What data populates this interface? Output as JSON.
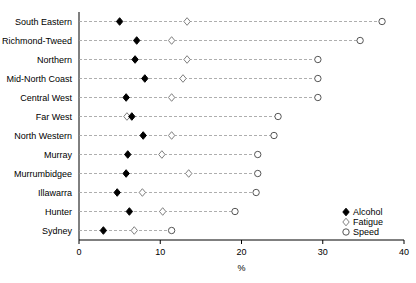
{
  "chart_data": {
    "type": "dot",
    "orientation": "horizontal",
    "xlabel": "%",
    "categories": [
      "South Eastern",
      "Richmond-Tweed",
      "Northern",
      "Mid-North Coast",
      "Central West",
      "Far West",
      "North Western",
      "Murray",
      "Murrumbidgee",
      "Illawarra",
      "Hunter",
      "Sydney"
    ],
    "series": [
      {
        "name": "Alcohol",
        "color": "#000000",
        "marker": "diamond-filled",
        "values": [
          5.0,
          7.1,
          6.9,
          8.1,
          5.8,
          6.5,
          7.9,
          6.0,
          5.8,
          4.7,
          6.2,
          3.0
        ]
      },
      {
        "name": "Fatigue",
        "color": "#808080",
        "marker": "diamond-open",
        "values": [
          13.3,
          11.4,
          13.3,
          12.8,
          11.4,
          5.9,
          11.4,
          10.2,
          13.5,
          7.8,
          10.3,
          6.8
        ]
      },
      {
        "name": "Speed",
        "color": "#555555",
        "marker": "circle-open",
        "values": [
          37.3,
          34.6,
          29.4,
          29.4,
          29.4,
          24.5,
          24.0,
          22.0,
          22.0,
          21.8,
          19.2,
          11.4
        ]
      }
    ],
    "xlim": [
      0,
      40
    ],
    "xticks": [
      0,
      10,
      20,
      30,
      40
    ],
    "grid": false,
    "legend": "lower right",
    "line_style": "dashed"
  }
}
